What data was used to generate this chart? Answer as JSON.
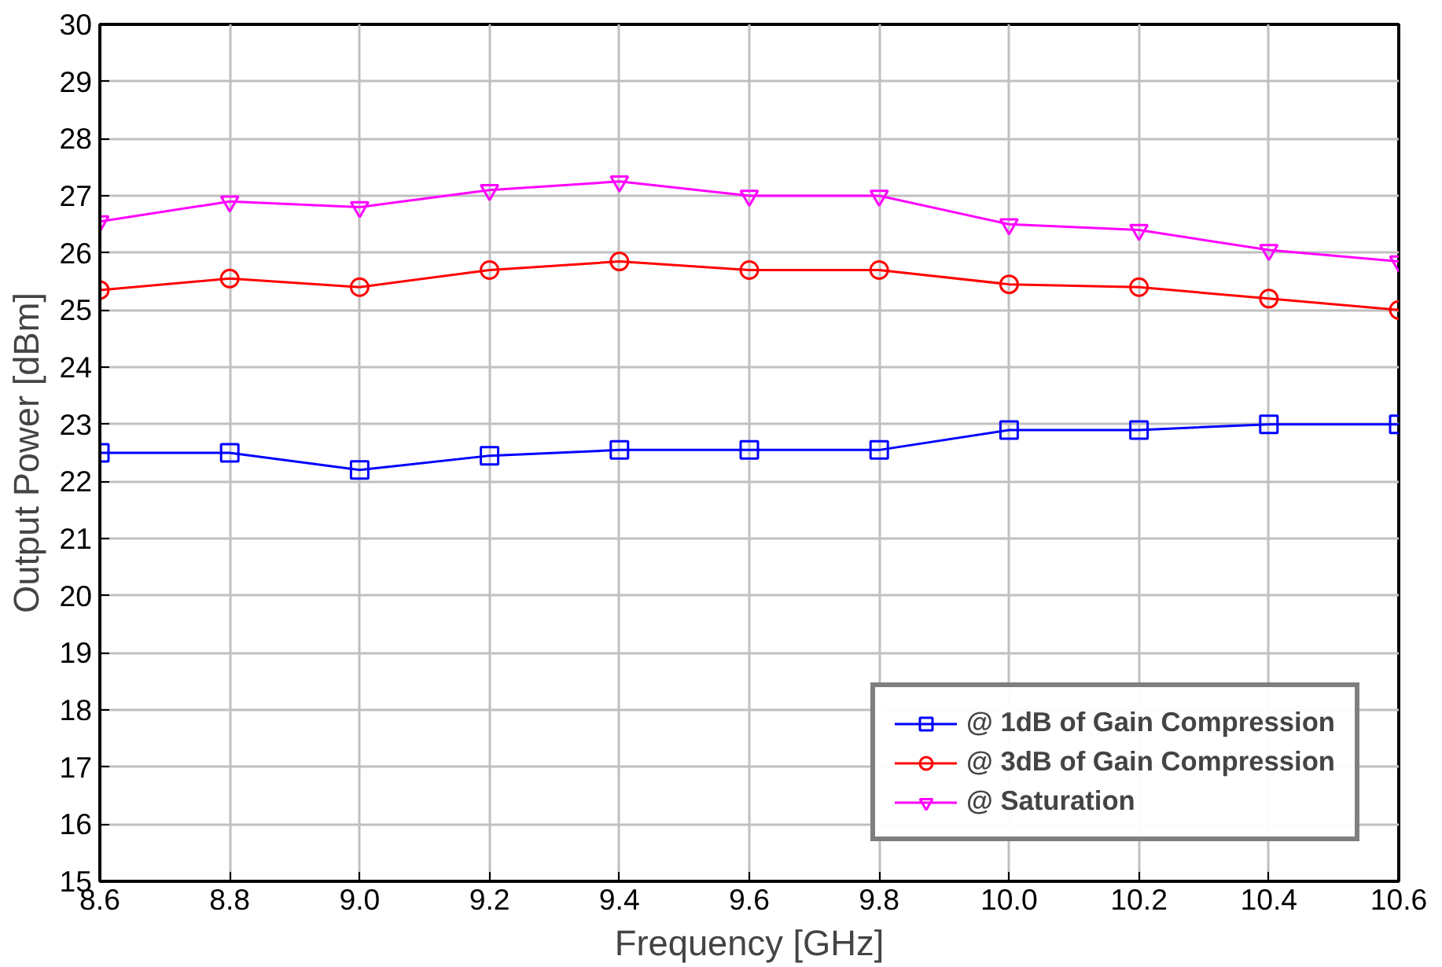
{
  "chart_data": {
    "type": "line",
    "xlabel": "Frequency [GHz]",
    "ylabel": "Output Power [dBm]",
    "x": [
      8.6,
      8.8,
      9.0,
      9.2,
      9.4,
      9.6,
      9.8,
      10.0,
      10.2,
      10.4,
      10.6
    ],
    "xlim": [
      8.6,
      10.6
    ],
    "xticks": [
      {
        "value": 8.6,
        "label": "8.6"
      },
      {
        "value": 8.8,
        "label": "8.8"
      },
      {
        "value": 9.0,
        "label": "9.0"
      },
      {
        "value": 9.2,
        "label": "9.2"
      },
      {
        "value": 9.4,
        "label": "9.4"
      },
      {
        "value": 9.6,
        "label": "9.6"
      },
      {
        "value": 9.8,
        "label": "9.8"
      },
      {
        "value": 10.0,
        "label": "10.0"
      },
      {
        "value": 10.2,
        "label": "10.2"
      },
      {
        "value": 10.4,
        "label": "10.4"
      },
      {
        "value": 10.6,
        "label": "10.6"
      }
    ],
    "ylim": [
      15,
      30
    ],
    "yticks": [
      15,
      16,
      17,
      18,
      19,
      20,
      21,
      22,
      23,
      24,
      25,
      26,
      27,
      28,
      29,
      30
    ],
    "grid": true,
    "legend": "bottom right",
    "series": [
      {
        "name": "@ 1dB of Gain Compression",
        "color": "#0000ff",
        "marker": "square",
        "values": [
          22.5,
          22.5,
          22.2,
          22.45,
          22.55,
          22.55,
          22.55,
          22.9,
          22.9,
          23.0,
          23.0
        ]
      },
      {
        "name": "@ 3dB of Gain Compression",
        "color": "#ff0000",
        "marker": "circle",
        "values": [
          25.35,
          25.55,
          25.4,
          25.7,
          25.85,
          25.7,
          25.7,
          25.45,
          25.4,
          25.2,
          25.0
        ]
      },
      {
        "name": "@ Saturation",
        "color": "#ff00ff",
        "marker": "triangle",
        "values": [
          26.55,
          26.9,
          26.8,
          27.1,
          27.25,
          27.0,
          27.0,
          26.5,
          26.4,
          26.05,
          25.85
        ]
      }
    ]
  }
}
